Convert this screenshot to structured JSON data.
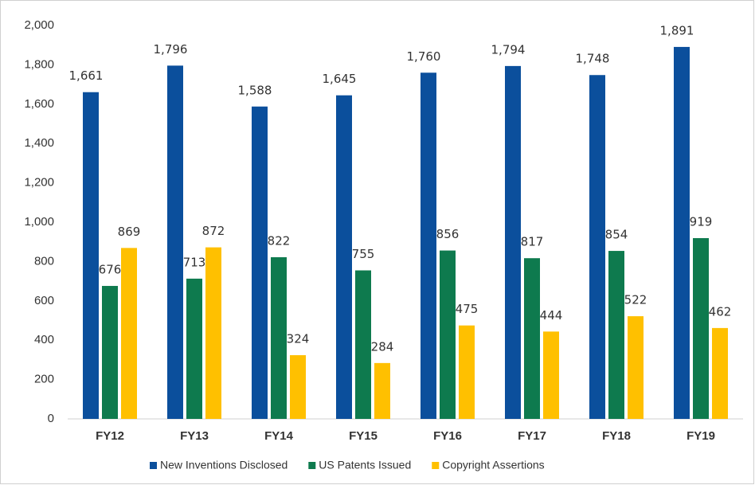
{
  "chart_data": {
    "type": "bar",
    "categories": [
      "FY12",
      "FY13",
      "FY14",
      "FY15",
      "FY16",
      "FY17",
      "FY18",
      "FY19"
    ],
    "series": [
      {
        "name": "New Inventions Disclosed",
        "color": "#0b4f9c",
        "values": [
          1661,
          1796,
          1588,
          1645,
          1760,
          1794,
          1748,
          1891
        ],
        "value_labels": [
          "1,661",
          "1,796",
          "1,588",
          "1,645",
          "1,760",
          "1,794",
          "1,748",
          "1,891"
        ]
      },
      {
        "name": "US Patents Issued",
        "color": "#0e7a4e",
        "values": [
          676,
          713,
          822,
          755,
          856,
          817,
          854,
          919
        ]
      },
      {
        "name": "Copyright Assertions",
        "color": "#ffc000",
        "values": [
          869,
          872,
          324,
          284,
          475,
          444,
          522,
          462
        ]
      }
    ],
    "ylim": [
      0,
      2000
    ],
    "yticks": [
      0,
      200,
      400,
      600,
      800,
      {
        "value": 1000,
        "label": "1,000"
      },
      {
        "value": 1200,
        "label": "1,200"
      },
      {
        "value": 1400,
        "label": "1,400"
      },
      {
        "value": 1600,
        "label": "1,600"
      },
      {
        "value": 1800,
        "label": "1,800"
      },
      {
        "value": 2000,
        "label": "2,000"
      }
    ],
    "grid": false,
    "legend": "bottom"
  }
}
